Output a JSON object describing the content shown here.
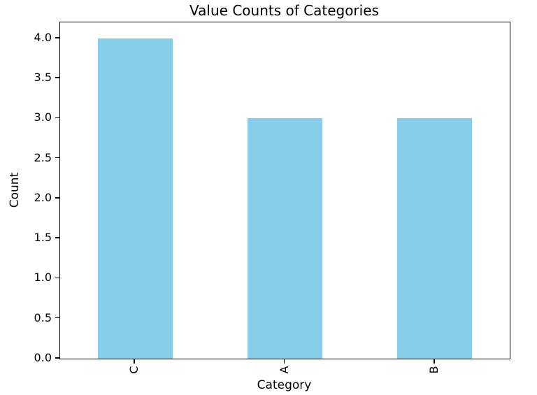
{
  "chart_data": {
    "type": "bar",
    "title": "Value Counts of Categories",
    "xlabel": "Category",
    "ylabel": "Count",
    "categories": [
      "C",
      "A",
      "B"
    ],
    "values": [
      4,
      3,
      3
    ],
    "yticks": [
      0.0,
      0.5,
      1.0,
      1.5,
      2.0,
      2.5,
      3.0,
      3.5,
      4.0
    ],
    "ytick_decimals": 1,
    "ylim": [
      0,
      4.2
    ],
    "bar_color": "#87CEEB",
    "bar_width_fraction": 0.5,
    "xtick_rotation_deg": 90,
    "grid": false,
    "legend": false,
    "text_color": "#000000",
    "spine_color": "#000000",
    "background_color": "#ffffff"
  }
}
